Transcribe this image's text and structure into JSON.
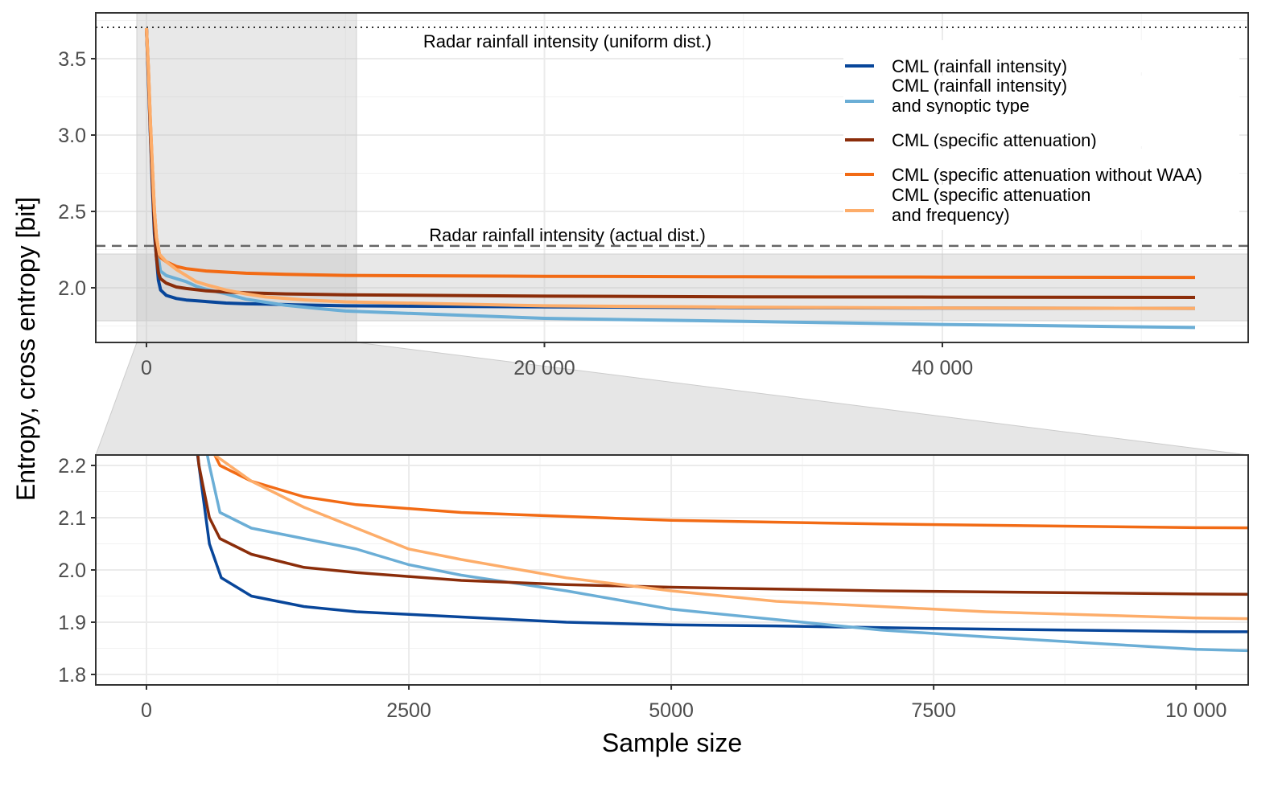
{
  "chart_data": [
    {
      "type": "line",
      "panel": "overview",
      "xlabel": "Sample size",
      "ylabel": "Entropy, cross entropy [bit]",
      "xlim": [
        -2548,
        55370
      ],
      "ylim": [
        1.642,
        3.8
      ],
      "grid": true,
      "x_ticks": [
        {
          "v": 0,
          "label": "0"
        },
        {
          "v": 20000,
          "label": "20 000"
        },
        {
          "v": 40000,
          "label": "40 000"
        }
      ],
      "y_ticks": [
        {
          "v": 2.0,
          "label": "2.0"
        },
        {
          "v": 2.5,
          "label": "2.5"
        },
        {
          "v": 3.0,
          "label": "3.0"
        },
        {
          "v": 3.5,
          "label": "3.5"
        }
      ],
      "reference_lines": [
        {
          "label": "Radar rainfall intensity (uniform dist.)",
          "y": 3.705,
          "style": "dotted"
        },
        {
          "label": "Radar rainfall intensity  (actual dist.)",
          "y": 2.274,
          "style": "dashed"
        }
      ],
      "zoom_region": {
        "x": [
          -485,
          10556
        ],
        "y": [
          1.784,
          2.221
        ]
      },
      "legend_placement": "top-right"
    },
    {
      "type": "line",
      "panel": "zoom",
      "xlabel": "Sample size",
      "xlim": [
        -483,
        10497
      ],
      "ylim": [
        1.78,
        2.22
      ],
      "grid": true,
      "x_ticks": [
        {
          "v": 0,
          "label": "0"
        },
        {
          "v": 2500,
          "label": "2500"
        },
        {
          "v": 5000,
          "label": "5000"
        },
        {
          "v": 7500,
          "label": "7500"
        },
        {
          "v": 10000,
          "label": "10 000"
        }
      ],
      "y_ticks": [
        {
          "v": 1.8,
          "label": "1.8"
        },
        {
          "v": 1.9,
          "label": "1.9"
        },
        {
          "v": 2.0,
          "label": "2.0"
        },
        {
          "v": 2.1,
          "label": "2.1"
        },
        {
          "v": 2.2,
          "label": "2.2"
        }
      ]
    }
  ],
  "series": [
    {
      "name": "CML (rainfall intensity)",
      "lines": [
        "CML (rainfall intensity)"
      ],
      "color": "#08469a",
      "x": [
        0,
        100,
        200,
        300,
        400,
        500,
        600,
        713,
        1000,
        1500,
        2000,
        2500,
        3000,
        4000,
        5000,
        6000,
        7500,
        10000,
        20000,
        30000,
        40000,
        52700
      ],
      "y": [
        3.7,
        3.35,
        3.0,
        2.65,
        2.35,
        2.2,
        2.05,
        1.985,
        1.95,
        1.93,
        1.92,
        1.915,
        1.91,
        1.9,
        1.895,
        1.893,
        1.888,
        1.882,
        1.875,
        1.87,
        1.867,
        1.865
      ]
    },
    {
      "name": "CML (rainfall intensity) and synoptic type",
      "lines": [
        "CML (rainfall intensity)",
        "and synoptic type"
      ],
      "color": "#6baed6",
      "x": [
        0,
        100,
        200,
        300,
        400,
        500,
        600,
        700,
        1000,
        1500,
        2000,
        2500,
        3000,
        4000,
        5000,
        6000,
        7000,
        8000,
        9000,
        10000,
        20000,
        30000,
        40000,
        52700
      ],
      "y": [
        3.7,
        3.4,
        3.05,
        2.75,
        2.45,
        2.3,
        2.2,
        2.11,
        2.08,
        2.06,
        2.04,
        2.01,
        1.99,
        1.96,
        1.925,
        1.905,
        1.885,
        1.872,
        1.86,
        1.848,
        1.8,
        1.78,
        1.76,
        1.74
      ]
    },
    {
      "name": "CML (specific attenuation)",
      "lines": [
        "CML (specific attenuation)"
      ],
      "color": "#8b2d0a",
      "x": [
        0,
        100,
        200,
        300,
        400,
        500,
        600,
        700,
        1000,
        1500,
        2000,
        3000,
        4000,
        5000,
        7000,
        10000,
        20000,
        30000,
        40000,
        52700
      ],
      "y": [
        3.7,
        3.38,
        3.02,
        2.7,
        2.4,
        2.2,
        2.1,
        2.06,
        2.03,
        2.005,
        1.995,
        1.98,
        1.972,
        1.967,
        1.96,
        1.954,
        1.945,
        1.941,
        1.939,
        1.937
      ]
    },
    {
      "name": "CML (specific attenuation without WAA)",
      "lines": [
        "CML (specific attenuation without WAA)"
      ],
      "color": "#f26b15",
      "x": [
        0,
        100,
        200,
        300,
        400,
        500,
        650,
        700,
        1000,
        1500,
        2000,
        3000,
        5000,
        7000,
        10000,
        20000,
        30000,
        40000,
        52700
      ],
      "y": [
        3.7,
        3.42,
        3.08,
        2.78,
        2.5,
        2.33,
        2.22,
        2.2,
        2.17,
        2.14,
        2.125,
        2.11,
        2.095,
        2.088,
        2.081,
        2.075,
        2.072,
        2.07,
        2.068
      ]
    },
    {
      "name": "CML (specific attenuation and frequency)",
      "lines": [
        "CML (specific attenuation",
        "and frequency)"
      ],
      "color": "#fdad6a",
      "x": [
        0,
        100,
        200,
        300,
        400,
        500,
        650,
        1000,
        1500,
        2000,
        2500,
        3000,
        4000,
        5000,
        6000,
        7000,
        8000,
        10000,
        20000,
        30000,
        40000,
        52700
      ],
      "y": [
        3.7,
        3.42,
        3.08,
        2.78,
        2.5,
        2.33,
        2.22,
        2.17,
        2.12,
        2.08,
        2.04,
        2.02,
        1.985,
        1.96,
        1.94,
        1.93,
        1.92,
        1.908,
        1.882,
        1.873,
        1.868,
        1.865
      ]
    }
  ]
}
